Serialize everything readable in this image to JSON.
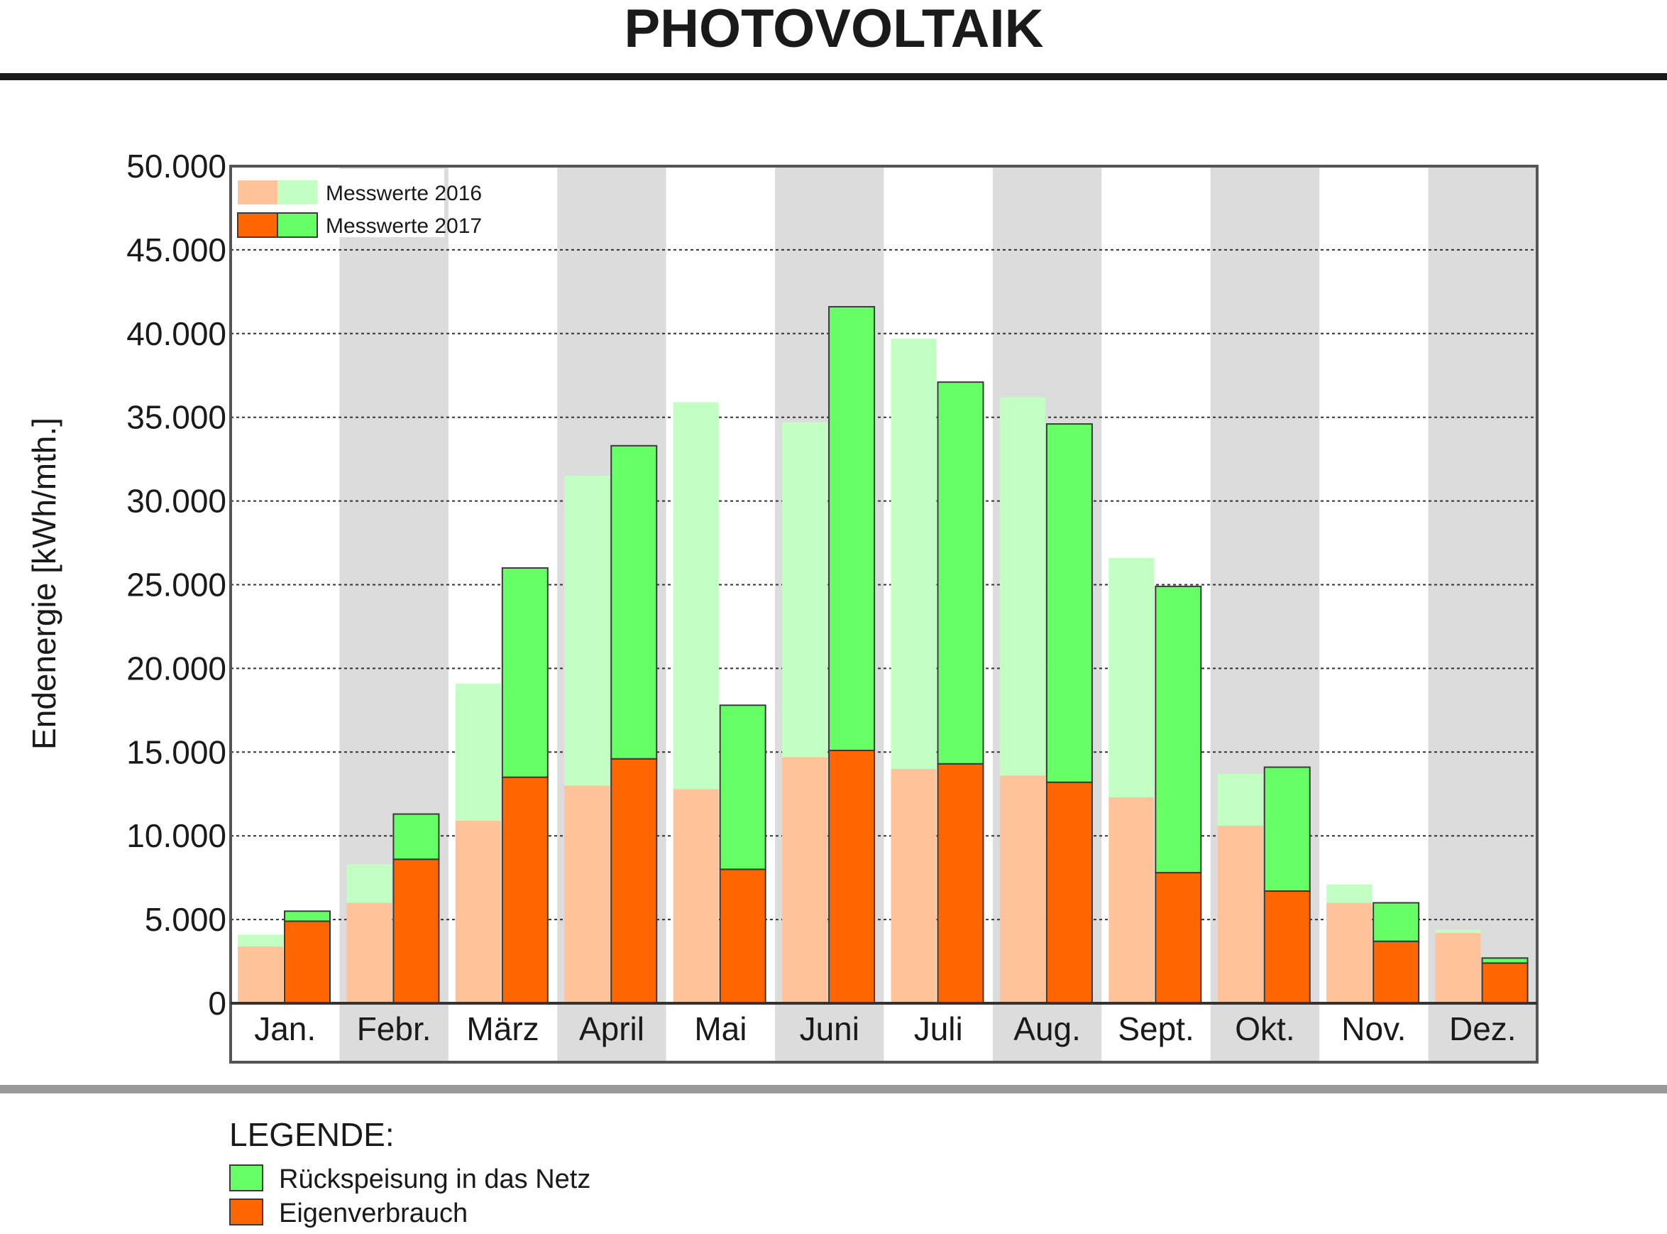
{
  "title": "PHOTOVOLTAIK",
  "legend_title": "LEGENDE:",
  "legend_items": [
    {
      "label": "Rückspeisung in das Netz",
      "color": "#66ff66"
    },
    {
      "label": "Eigenverbrauch",
      "color": "#ff6600"
    }
  ],
  "colors": {
    "feed_2016": "#c2ffc2",
    "self_2016": "#ffc299",
    "feed_2017": "#66ff66",
    "self_2017": "#ff6600",
    "band": "#dcdcdc",
    "frame": "#555555",
    "rule_top": "#1a1a1a",
    "rule_bottom": "#999999"
  },
  "chart_data": {
    "type": "bar",
    "stacked": true,
    "grouped_by_year": true,
    "title": "PHOTOVOLTAIK",
    "ylabel": "Endenergie [kWh/mth.]",
    "xlabel": "",
    "ylim": [
      0,
      50000
    ],
    "yticks": [
      0,
      5000,
      10000,
      15000,
      20000,
      25000,
      30000,
      35000,
      40000,
      45000,
      50000
    ],
    "ytick_labels": [
      "0",
      "5.000",
      "10.000",
      "15.000",
      "20.000",
      "25.000",
      "30.000",
      "35.000",
      "40.000",
      "45.000",
      "50.000"
    ],
    "grid": "horizontal dotted",
    "inset_legend": [
      "Messwerte 2016",
      "Messwerte 2017"
    ],
    "inset_legend_placement": "top-left",
    "categories": [
      "Jan.",
      "Febr.",
      "März",
      "April",
      "Mai",
      "Juni",
      "Juli",
      "Aug.",
      "Sept.",
      "Okt.",
      "Nov.",
      "Dez."
    ],
    "series": [
      {
        "name": "Messwerte 2016",
        "stack": "2016",
        "component": "Eigenverbrauch",
        "values": [
          3400,
          6000,
          10900,
          13000,
          12800,
          14700,
          14000,
          13600,
          12300,
          10600,
          6000,
          4200
        ]
      },
      {
        "name": "Messwerte 2016",
        "stack": "2016",
        "component": "Rückspeisung in das Netz",
        "values": [
          700,
          2300,
          8200,
          18500,
          23100,
          20000,
          25700,
          22600,
          14300,
          3100,
          1100,
          200
        ]
      },
      {
        "name": "Messwerte 2017",
        "stack": "2017",
        "component": "Eigenverbrauch",
        "values": [
          4900,
          8600,
          13500,
          14600,
          8000,
          15100,
          14300,
          13200,
          7800,
          6700,
          3700,
          2400
        ]
      },
      {
        "name": "Messwerte 2017",
        "stack": "2017",
        "component": "Rückspeisung in das Netz",
        "values": [
          600,
          2700,
          12500,
          18700,
          9800,
          26500,
          22800,
          21400,
          17100,
          7400,
          2300,
          300
        ]
      }
    ]
  }
}
